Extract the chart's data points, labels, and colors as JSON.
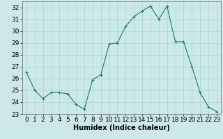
{
  "x": [
    0,
    1,
    2,
    3,
    4,
    5,
    6,
    7,
    8,
    9,
    10,
    11,
    12,
    13,
    14,
    15,
    16,
    17,
    18,
    19,
    20,
    21,
    22,
    23
  ],
  "y": [
    26.5,
    25.0,
    24.3,
    24.8,
    24.8,
    24.7,
    23.8,
    23.4,
    25.9,
    26.3,
    28.9,
    29.0,
    30.4,
    31.2,
    31.7,
    32.1,
    31.0,
    32.1,
    29.1,
    29.1,
    27.0,
    24.8,
    23.6,
    23.2
  ],
  "line_color": "#1a7a6e",
  "marker": "+",
  "bg_color": "#cce8e8",
  "grid_color": "#aad4d4",
  "xlabel": "Humidex (Indice chaleur)",
  "ylim": [
    23,
    32.5
  ],
  "yticks": [
    23,
    24,
    25,
    26,
    27,
    28,
    29,
    30,
    31,
    32
  ],
  "xticks": [
    0,
    1,
    2,
    3,
    4,
    5,
    6,
    7,
    8,
    9,
    10,
    11,
    12,
    13,
    14,
    15,
    16,
    17,
    18,
    19,
    20,
    21,
    22,
    23
  ],
  "font_size": 6.5,
  "xlabel_fontsize": 7.0
}
